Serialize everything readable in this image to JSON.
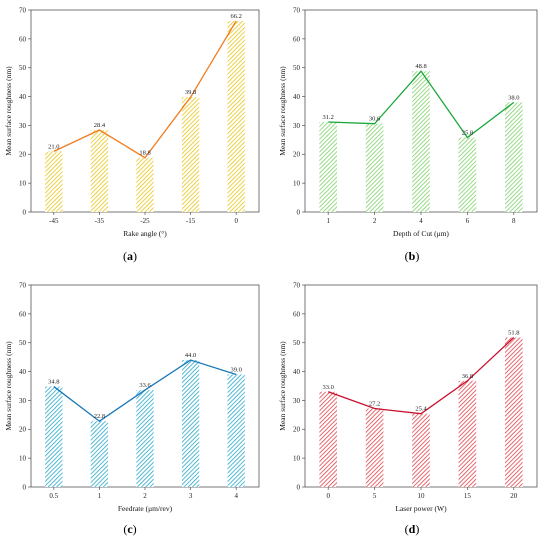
{
  "chart_data": [
    {
      "type": "bar",
      "panel_label": "a",
      "xlabel": "Rake angle (°)",
      "ylabel": "Mean surface roughness (nm)",
      "categories": [
        "-45",
        "-35",
        "-25",
        "-15",
        "0"
      ],
      "values": [
        21.0,
        28.4,
        18.8,
        39.8,
        66.2
      ],
      "data_labels": [
        "21.0",
        "28.4",
        "18.8",
        "39.8",
        "66.2"
      ],
      "ylim": [
        0,
        70
      ],
      "yticks": [
        "0",
        "10",
        "20",
        "30",
        "40",
        "50",
        "60",
        "70"
      ],
      "overlay": "line",
      "grid": false,
      "bar_color": "#e8c619",
      "line_color": "#f07b1e"
    },
    {
      "type": "bar",
      "panel_label": "b",
      "xlabel": "Depth of Cut (μm)",
      "ylabel": "Mean surface roughness (nm)",
      "categories": [
        "1",
        "2",
        "4",
        "6",
        "8"
      ],
      "values": [
        31.2,
        30.6,
        48.8,
        25.8,
        38.0
      ],
      "data_labels": [
        "31.2",
        "30.6",
        "48.8",
        "25.8",
        "38.0"
      ],
      "ylim": [
        0,
        70
      ],
      "yticks": [
        "0",
        "10",
        "20",
        "30",
        "40",
        "50",
        "60",
        "70"
      ],
      "overlay": "line",
      "grid": false,
      "bar_color": "#7fd06a",
      "line_color": "#19a83a"
    },
    {
      "type": "bar",
      "panel_label": "c",
      "xlabel": "Feedrate (μm/rev)",
      "ylabel": "Mean surface roughness (nm)",
      "categories": [
        "0.5",
        "1",
        "2",
        "3",
        "4"
      ],
      "values": [
        34.8,
        22.8,
        33.6,
        44.0,
        39.0
      ],
      "data_labels": [
        "34.8",
        "22.8",
        "33.6",
        "44.0",
        "39.0"
      ],
      "ylim": [
        0,
        70
      ],
      "yticks": [
        "0",
        "10",
        "20",
        "30",
        "40",
        "50",
        "60",
        "70"
      ],
      "overlay": "line",
      "grid": false,
      "bar_color": "#29a9c9",
      "line_color": "#1878b8"
    },
    {
      "type": "bar",
      "panel_label": "d",
      "xlabel": "Laser power (W)",
      "ylabel": "Mean surface roughness (nm)",
      "categories": [
        "0",
        "5",
        "10",
        "15",
        "20"
      ],
      "values": [
        33.0,
        27.2,
        25.4,
        36.8,
        51.8
      ],
      "data_labels": [
        "33.0",
        "27.2",
        "25.4",
        "36.8",
        "51.8"
      ],
      "ylim": [
        0,
        70
      ],
      "yticks": [
        "0",
        "10",
        "20",
        "30",
        "40",
        "50",
        "60",
        "70"
      ],
      "overlay": "line",
      "grid": false,
      "bar_color": "#e0444c",
      "line_color": "#c8102e"
    }
  ]
}
